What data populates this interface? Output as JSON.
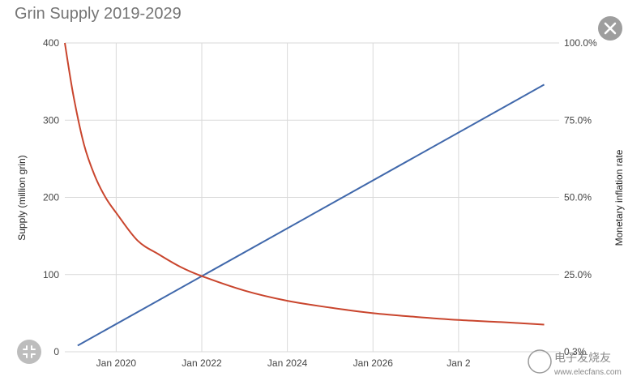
{
  "header": {
    "title": "Grin Supply 2019-2029"
  },
  "controls": {
    "close_icon": "close-icon",
    "expand_icon": "expand-icon"
  },
  "colors": {
    "supply": "#4068ab",
    "inflation": "#c9452d",
    "grid": "#d9d9d9"
  },
  "watermark": {
    "text": "电子发烧友",
    "url": "www.elecfans.com"
  },
  "chart_data": {
    "type": "line",
    "title": "Grin Supply 2019-2029",
    "ylabel": "Supply (million grin)",
    "y2label": "Monetary inflation rate",
    "ylim": [
      0,
      400
    ],
    "y2lim": [
      0,
      100
    ],
    "x_ticks": [
      "Jan 2020",
      "Jan 2022",
      "Jan 2024",
      "Jan 2026",
      "Jan 2"
    ],
    "y_ticks": [
      "0",
      "100",
      "200",
      "300",
      "400"
    ],
    "y2_ticks": [
      "0.3%",
      "25.0%",
      "50.0%",
      "75.0%",
      "100.0%"
    ],
    "grid": true,
    "series": [
      {
        "name": "Supply (million grin)",
        "axis": "left",
        "x": [
          2019.1,
          2030.0
        ],
        "y": [
          8,
          346
        ]
      },
      {
        "name": "Monetary inflation rate",
        "axis": "right",
        "x": [
          2018.8,
          2019.0,
          2019.25,
          2019.5,
          2019.75,
          2020.0,
          2020.5,
          2021.0,
          2021.5,
          2022.0,
          2023.0,
          2024.0,
          2025.0,
          2026.0,
          2027.0,
          2028.0,
          2029.0,
          2030.0
        ],
        "y": [
          100,
          83,
          67,
          57,
          50,
          45,
          36,
          31.5,
          27.5,
          24.5,
          19.8,
          16.5,
          14.3,
          12.5,
          11.3,
          10.3,
          9.6,
          8.8
        ]
      }
    ]
  }
}
